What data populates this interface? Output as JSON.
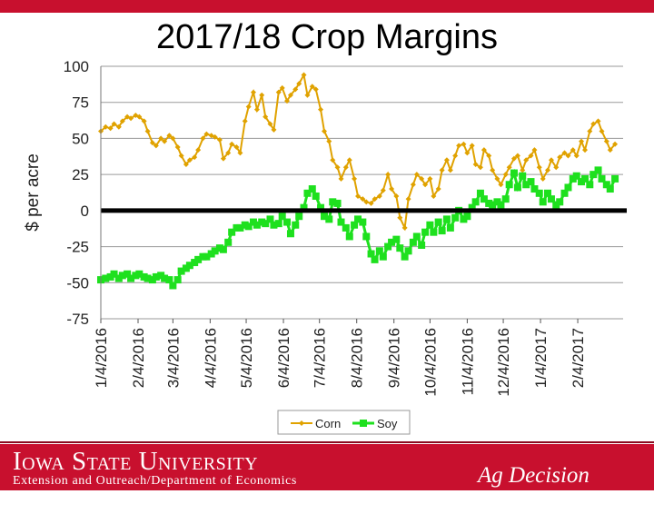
{
  "header": {
    "title": "2017/18 Crop Margins",
    "accent_color": "#c8102e"
  },
  "footer": {
    "university": "Iowa State University",
    "department": "Extension and Outreach/Department of Economics",
    "brand": "Ag Decision Maker"
  },
  "chart_data": {
    "type": "line",
    "title": "2017/18 Crop Margins",
    "ylabel": "$ per acre",
    "xlabel": "",
    "ylim": [
      -75,
      100
    ],
    "yticks": [
      100,
      75,
      50,
      25,
      0,
      -25,
      -50,
      -75
    ],
    "ytick_labels": [
      "100",
      "75",
      "50",
      "25",
      "0",
      "-25",
      "-50",
      "-75"
    ],
    "xtick_labels": [
      "1/4/2016",
      "2/4/2016",
      "3/4/2016",
      "4/4/2016",
      "5/4/2016",
      "6/4/2016",
      "7/4/2016",
      "8/4/2016",
      "9/4/2016",
      "10/4/2016",
      "11/4/2016",
      "12/4/2016",
      "1/4/2017",
      "2/4/2017"
    ],
    "grid": true,
    "zero_line": true,
    "legend": "bottom",
    "series": [
      {
        "name": "Corn",
        "color": "#e0a200",
        "marker": "diamond",
        "points": [
          [
            "2016-01-04",
            55
          ],
          [
            "2016-01-08",
            58
          ],
          [
            "2016-01-12",
            57
          ],
          [
            "2016-01-15",
            60
          ],
          [
            "2016-01-19",
            58
          ],
          [
            "2016-01-22",
            62
          ],
          [
            "2016-01-26",
            65
          ],
          [
            "2016-01-29",
            64
          ],
          [
            "2016-02-02",
            66
          ],
          [
            "2016-02-05",
            65
          ],
          [
            "2016-02-09",
            62
          ],
          [
            "2016-02-12",
            55
          ],
          [
            "2016-02-16",
            47
          ],
          [
            "2016-02-19",
            45
          ],
          [
            "2016-02-23",
            50
          ],
          [
            "2016-02-26",
            48
          ],
          [
            "2016-03-01",
            52
          ],
          [
            "2016-03-04",
            50
          ],
          [
            "2016-03-08",
            44
          ],
          [
            "2016-03-11",
            38
          ],
          [
            "2016-03-15",
            32
          ],
          [
            "2016-03-18",
            35
          ],
          [
            "2016-03-22",
            37
          ],
          [
            "2016-03-25",
            42
          ],
          [
            "2016-03-29",
            50
          ],
          [
            "2016-04-01",
            53
          ],
          [
            "2016-04-05",
            52
          ],
          [
            "2016-04-08",
            51
          ],
          [
            "2016-04-12",
            49
          ],
          [
            "2016-04-15",
            36
          ],
          [
            "2016-04-19",
            40
          ],
          [
            "2016-04-22",
            46
          ],
          [
            "2016-04-26",
            44
          ],
          [
            "2016-04-29",
            40
          ],
          [
            "2016-05-03",
            62
          ],
          [
            "2016-05-06",
            72
          ],
          [
            "2016-05-10",
            82
          ],
          [
            "2016-05-13",
            70
          ],
          [
            "2016-05-17",
            80
          ],
          [
            "2016-05-20",
            65
          ],
          [
            "2016-05-24",
            60
          ],
          [
            "2016-05-27",
            56
          ],
          [
            "2016-05-31",
            82
          ],
          [
            "2016-06-03",
            85
          ],
          [
            "2016-06-07",
            76
          ],
          [
            "2016-06-10",
            80
          ],
          [
            "2016-06-14",
            84
          ],
          [
            "2016-06-17",
            88
          ],
          [
            "2016-06-21",
            94
          ],
          [
            "2016-06-24",
            80
          ],
          [
            "2016-06-28",
            86
          ],
          [
            "2016-07-01",
            84
          ],
          [
            "2016-07-05",
            70
          ],
          [
            "2016-07-08",
            55
          ],
          [
            "2016-07-12",
            48
          ],
          [
            "2016-07-15",
            35
          ],
          [
            "2016-07-19",
            30
          ],
          [
            "2016-07-22",
            22
          ],
          [
            "2016-07-26",
            30
          ],
          [
            "2016-07-29",
            35
          ],
          [
            "2016-08-02",
            22
          ],
          [
            "2016-08-05",
            10
          ],
          [
            "2016-08-09",
            8
          ],
          [
            "2016-08-12",
            6
          ],
          [
            "2016-08-16",
            5
          ],
          [
            "2016-08-19",
            8
          ],
          [
            "2016-08-23",
            10
          ],
          [
            "2016-08-26",
            14
          ],
          [
            "2016-08-30",
            25
          ],
          [
            "2016-09-02",
            15
          ],
          [
            "2016-09-06",
            10
          ],
          [
            "2016-09-09",
            -5
          ],
          [
            "2016-09-13",
            -12
          ],
          [
            "2016-09-16",
            8
          ],
          [
            "2016-09-20",
            18
          ],
          [
            "2016-09-23",
            25
          ],
          [
            "2016-09-27",
            22
          ],
          [
            "2016-09-30",
            18
          ],
          [
            "2016-10-04",
            22
          ],
          [
            "2016-10-07",
            10
          ],
          [
            "2016-10-11",
            15
          ],
          [
            "2016-10-14",
            28
          ],
          [
            "2016-10-18",
            35
          ],
          [
            "2016-10-21",
            28
          ],
          [
            "2016-10-25",
            38
          ],
          [
            "2016-10-28",
            45
          ],
          [
            "2016-11-01",
            46
          ],
          [
            "2016-11-04",
            40
          ],
          [
            "2016-11-08",
            45
          ],
          [
            "2016-11-11",
            32
          ],
          [
            "2016-11-15",
            30
          ],
          [
            "2016-11-18",
            42
          ],
          [
            "2016-11-22",
            38
          ],
          [
            "2016-11-25",
            28
          ],
          [
            "2016-11-29",
            22
          ],
          [
            "2016-12-02",
            18
          ],
          [
            "2016-12-06",
            25
          ],
          [
            "2016-12-09",
            30
          ],
          [
            "2016-12-13",
            36
          ],
          [
            "2016-12-16",
            38
          ],
          [
            "2016-12-20",
            28
          ],
          [
            "2016-12-23",
            35
          ],
          [
            "2016-12-27",
            38
          ],
          [
            "2016-12-30",
            42
          ],
          [
            "2017-01-03",
            30
          ],
          [
            "2017-01-06",
            22
          ],
          [
            "2017-01-10",
            28
          ],
          [
            "2017-01-13",
            35
          ],
          [
            "2017-01-17",
            30
          ],
          [
            "2017-01-20",
            37
          ],
          [
            "2017-01-24",
            40
          ],
          [
            "2017-01-27",
            38
          ],
          [
            "2017-01-31",
            42
          ],
          [
            "2017-02-03",
            38
          ],
          [
            "2017-02-07",
            48
          ],
          [
            "2017-02-10",
            42
          ],
          [
            "2017-02-14",
            55
          ],
          [
            "2017-02-17",
            60
          ],
          [
            "2017-02-21",
            62
          ],
          [
            "2017-02-24",
            55
          ],
          [
            "2017-02-28",
            48
          ],
          [
            "2017-03-03",
            42
          ],
          [
            "2017-03-07",
            46
          ]
        ]
      },
      {
        "name": "Soy",
        "color": "#1ee01e",
        "marker": "square",
        "points": [
          [
            "2016-01-04",
            -48
          ],
          [
            "2016-01-08",
            -47
          ],
          [
            "2016-01-12",
            -46
          ],
          [
            "2016-01-15",
            -44
          ],
          [
            "2016-01-19",
            -47
          ],
          [
            "2016-01-22",
            -45
          ],
          [
            "2016-01-26",
            -44
          ],
          [
            "2016-01-29",
            -47
          ],
          [
            "2016-02-02",
            -45
          ],
          [
            "2016-02-05",
            -44
          ],
          [
            "2016-02-09",
            -46
          ],
          [
            "2016-02-12",
            -47
          ],
          [
            "2016-02-16",
            -48
          ],
          [
            "2016-02-19",
            -46
          ],
          [
            "2016-02-23",
            -45
          ],
          [
            "2016-02-26",
            -47
          ],
          [
            "2016-03-01",
            -48
          ],
          [
            "2016-03-04",
            -52
          ],
          [
            "2016-03-08",
            -48
          ],
          [
            "2016-03-11",
            -42
          ],
          [
            "2016-03-15",
            -40
          ],
          [
            "2016-03-18",
            -38
          ],
          [
            "2016-03-22",
            -36
          ],
          [
            "2016-03-25",
            -34
          ],
          [
            "2016-03-29",
            -32
          ],
          [
            "2016-04-01",
            -32
          ],
          [
            "2016-04-05",
            -30
          ],
          [
            "2016-04-08",
            -28
          ],
          [
            "2016-04-12",
            -26
          ],
          [
            "2016-04-15",
            -27
          ],
          [
            "2016-04-19",
            -22
          ],
          [
            "2016-04-22",
            -15
          ],
          [
            "2016-04-26",
            -12
          ],
          [
            "2016-04-29",
            -12
          ],
          [
            "2016-05-03",
            -10
          ],
          [
            "2016-05-06",
            -11
          ],
          [
            "2016-05-10",
            -8
          ],
          [
            "2016-05-13",
            -10
          ],
          [
            "2016-05-17",
            -8
          ],
          [
            "2016-05-20",
            -9
          ],
          [
            "2016-05-24",
            -6
          ],
          [
            "2016-05-27",
            -10
          ],
          [
            "2016-05-31",
            -9
          ],
          [
            "2016-06-03",
            -4
          ],
          [
            "2016-06-07",
            -8
          ],
          [
            "2016-06-10",
            -16
          ],
          [
            "2016-06-14",
            -10
          ],
          [
            "2016-06-17",
            -4
          ],
          [
            "2016-06-21",
            2
          ],
          [
            "2016-06-24",
            12
          ],
          [
            "2016-06-28",
            15
          ],
          [
            "2016-07-01",
            10
          ],
          [
            "2016-07-05",
            2
          ],
          [
            "2016-07-08",
            -4
          ],
          [
            "2016-07-12",
            -6
          ],
          [
            "2016-07-15",
            6
          ],
          [
            "2016-07-19",
            5
          ],
          [
            "2016-07-22",
            -8
          ],
          [
            "2016-07-26",
            -12
          ],
          [
            "2016-07-29",
            -18
          ],
          [
            "2016-08-02",
            -10
          ],
          [
            "2016-08-05",
            -6
          ],
          [
            "2016-08-09",
            -8
          ],
          [
            "2016-08-12",
            -18
          ],
          [
            "2016-08-16",
            -30
          ],
          [
            "2016-08-19",
            -34
          ],
          [
            "2016-08-23",
            -28
          ],
          [
            "2016-08-26",
            -32
          ],
          [
            "2016-08-30",
            -25
          ],
          [
            "2016-09-02",
            -22
          ],
          [
            "2016-09-06",
            -20
          ],
          [
            "2016-09-09",
            -26
          ],
          [
            "2016-09-13",
            -32
          ],
          [
            "2016-09-16",
            -28
          ],
          [
            "2016-09-20",
            -22
          ],
          [
            "2016-09-23",
            -18
          ],
          [
            "2016-09-27",
            -24
          ],
          [
            "2016-09-30",
            -15
          ],
          [
            "2016-10-04",
            -10
          ],
          [
            "2016-10-07",
            -15
          ],
          [
            "2016-10-11",
            -8
          ],
          [
            "2016-10-14",
            -14
          ],
          [
            "2016-10-18",
            -6
          ],
          [
            "2016-10-21",
            -12
          ],
          [
            "2016-10-25",
            -5
          ],
          [
            "2016-10-28",
            0
          ],
          [
            "2016-11-01",
            -6
          ],
          [
            "2016-11-04",
            -4
          ],
          [
            "2016-11-08",
            2
          ],
          [
            "2016-11-11",
            6
          ],
          [
            "2016-11-15",
            12
          ],
          [
            "2016-11-18",
            8
          ],
          [
            "2016-11-22",
            5
          ],
          [
            "2016-11-25",
            4
          ],
          [
            "2016-11-29",
            6
          ],
          [
            "2016-12-02",
            4
          ],
          [
            "2016-12-06",
            8
          ],
          [
            "2016-12-09",
            18
          ],
          [
            "2016-12-13",
            26
          ],
          [
            "2016-12-16",
            16
          ],
          [
            "2016-12-20",
            24
          ],
          [
            "2016-12-23",
            18
          ],
          [
            "2016-12-27",
            20
          ],
          [
            "2016-12-30",
            15
          ],
          [
            "2017-01-03",
            12
          ],
          [
            "2017-01-06",
            6
          ],
          [
            "2017-01-10",
            12
          ],
          [
            "2017-01-13",
            8
          ],
          [
            "2017-01-17",
            4
          ],
          [
            "2017-01-20",
            6
          ],
          [
            "2017-01-24",
            12
          ],
          [
            "2017-01-27",
            16
          ],
          [
            "2017-01-31",
            22
          ],
          [
            "2017-02-03",
            24
          ],
          [
            "2017-02-07",
            20
          ],
          [
            "2017-02-10",
            22
          ],
          [
            "2017-02-14",
            18
          ],
          [
            "2017-02-17",
            25
          ],
          [
            "2017-02-21",
            28
          ],
          [
            "2017-02-24",
            22
          ],
          [
            "2017-02-28",
            18
          ],
          [
            "2017-03-03",
            15
          ],
          [
            "2017-03-07",
            22
          ]
        ]
      }
    ]
  }
}
